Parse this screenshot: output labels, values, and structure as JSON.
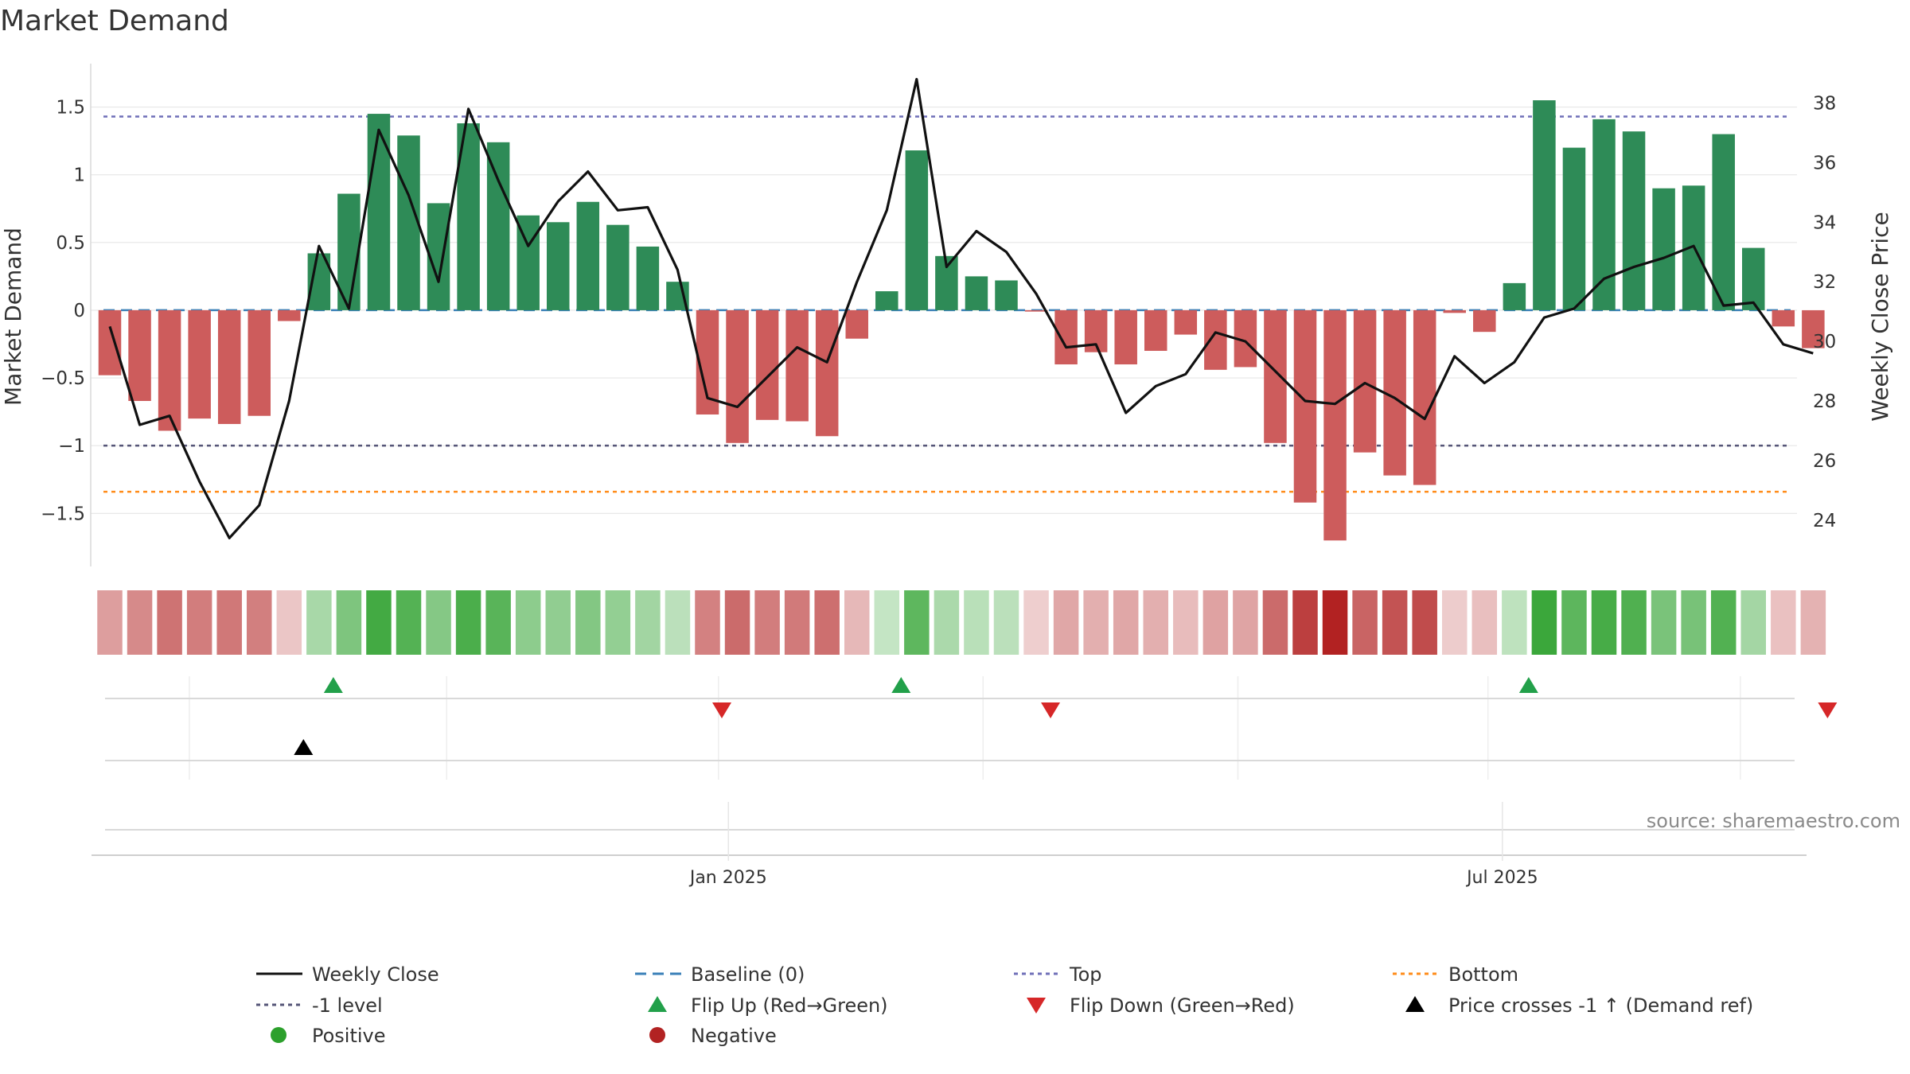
{
  "chart_data": {
    "type": "bar",
    "title": "Market Demand",
    "ylabel": "Market Demand",
    "y2label": "Weekly Close Price",
    "ylim": [
      -1.88,
      1.75
    ],
    "y2lim": [
      22.5,
      39.0
    ],
    "yticks": [
      1.5,
      1,
      0.5,
      0,
      -0.5,
      -1,
      -1.5
    ],
    "yticklabels": [
      "1.5",
      "1",
      "0.5",
      "0",
      "−0.5",
      "−1",
      "−1.5"
    ],
    "y2ticks": [
      38,
      36,
      34,
      32,
      30,
      28,
      26,
      24
    ],
    "y2ticklabels": [
      "38",
      "36",
      "34",
      "32",
      "30",
      "28",
      "26",
      "24"
    ],
    "xtick_labels": [
      {
        "label": "Jan 2025",
        "index": 20.7
      },
      {
        "label": "Jul 2025",
        "index": 46.6
      }
    ],
    "grid": true,
    "reference_lines": {
      "baseline": 0,
      "top": 1.43,
      "minus_one": -1,
      "bottom": -1.34
    },
    "demand": [
      -0.48,
      -0.67,
      -0.89,
      -0.8,
      -0.84,
      -0.78,
      -0.08,
      0.42,
      0.86,
      1.45,
      1.29,
      0.79,
      1.38,
      1.24,
      0.7,
      0.65,
      0.8,
      0.63,
      0.47,
      0.21,
      -0.77,
      -0.98,
      -0.81,
      -0.82,
      -0.93,
      -0.21,
      0.14,
      1.18,
      0.4,
      0.25,
      0.22,
      -0.01,
      -0.4,
      -0.31,
      -0.4,
      -0.3,
      -0.18,
      -0.44,
      -0.42,
      -0.98,
      -1.42,
      -1.7,
      -1.05,
      -1.22,
      -1.29,
      -0.02,
      -0.16,
      0.2,
      1.55,
      1.2,
      1.41,
      1.32,
      0.9,
      0.92,
      1.3,
      0.46,
      -0.12,
      -0.28
    ],
    "close": [
      30.5,
      27.2,
      27.5,
      25.3,
      23.4,
      24.5,
      28.0,
      33.2,
      31.1,
      37.1,
      34.9,
      32.0,
      37.8,
      35.4,
      33.2,
      34.7,
      35.7,
      34.4,
      34.5,
      32.4,
      28.1,
      27.8,
      28.8,
      29.8,
      29.3,
      32.0,
      34.4,
      38.8,
      32.5,
      33.7,
      33.0,
      31.6,
      29.8,
      29.9,
      27.6,
      28.5,
      28.9,
      30.3,
      30.0,
      29.0,
      28.0,
      27.9,
      28.6,
      28.1,
      27.4,
      29.5,
      28.6,
      29.3,
      30.8,
      31.1,
      32.1,
      32.5,
      32.8,
      33.2,
      31.2,
      31.3,
      29.9,
      29.6
    ],
    "flip_up": [
      7,
      26,
      47
    ],
    "flip_down": [
      20,
      31,
      57
    ],
    "price_cross": [
      6
    ],
    "annotation": "source: sharemaestro.com",
    "legend": [
      {
        "label": "Weekly Close",
        "symbol": "line",
        "color": "#111111"
      },
      {
        "label": "Baseline (0)",
        "symbol": "dash",
        "color": "#3a80b8"
      },
      {
        "label": "Top",
        "symbol": "dot",
        "color": "#6f6fb8"
      },
      {
        "label": "Bottom",
        "symbol": "dot",
        "color": "#ff8c1a"
      },
      {
        "label": "-1 level",
        "symbol": "dot",
        "color": "#555577"
      },
      {
        "label": "Flip Up (Red→Green)",
        "symbol": "tri-up",
        "color": "#22a04a"
      },
      {
        "label": "Flip Down (Green→Red)",
        "symbol": "tri-down",
        "color": "#d62728"
      },
      {
        "label": "Price crosses -1 ↑ (Demand ref)",
        "symbol": "tri-up",
        "color": "#000000"
      },
      {
        "label": "Positive",
        "symbol": "circle",
        "color": "#2ca02c"
      },
      {
        "label": "Negative",
        "symbol": "circle",
        "color": "#b22222"
      }
    ],
    "colors": {
      "positive_bar": "#2e8b57",
      "negative_bar": "#cd5c5c",
      "heat_positive": "#2ca02c",
      "heat_negative": "#b22222",
      "close_line": "#111111",
      "grid": "#e6e6e6"
    }
  }
}
